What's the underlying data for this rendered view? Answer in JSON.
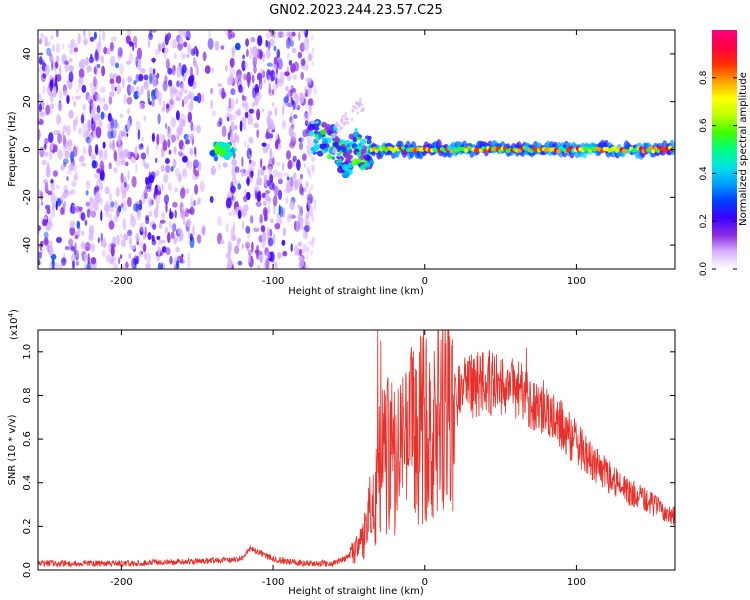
{
  "title": "GN02.2023.244.23.57.C25",
  "chart_data": [
    {
      "type": "heatmap",
      "xlabel": "Height of straight line (km)",
      "ylabel": "Frequency (Hz)",
      "xlim": [
        -255,
        165
      ],
      "ylim": [
        -50,
        50
      ],
      "xticks": [
        -200,
        -100,
        0,
        100
      ],
      "yticks": [
        -40,
        -20,
        0,
        20,
        40
      ],
      "xtick_labels": [
        "-200",
        "-100",
        "0",
        "100"
      ],
      "ytick_labels": [
        "-40",
        "-20",
        "0",
        "20",
        "40"
      ],
      "colorbar": {
        "label": "Normalized spectral amplitude",
        "range": [
          0,
          1
        ],
        "ticks": [
          0.0,
          0.2,
          0.4,
          0.6,
          0.8
        ],
        "tick_labels": [
          "0.0",
          "0.2",
          "0.4",
          "0.6",
          "0.8"
        ],
        "colors": [
          "#ffffff",
          "#d9b3ff",
          "#8a2be2",
          "#3b00ff",
          "#0040ff",
          "#00a0ff",
          "#00e5e5",
          "#00ff80",
          "#40ff00",
          "#c0ff00",
          "#ffff00",
          "#ffa000",
          "#ff3000",
          "#ff0040",
          "#ff0080"
        ]
      },
      "features": {
        "noise_region_x": [
          -255,
          -75
        ],
        "onset_x": -75,
        "line_frequency": 0,
        "line_start_x": -35,
        "transition_segment": [
          [
            -75,
            5
          ],
          [
            -60,
            3
          ],
          [
            -52,
            -5
          ],
          [
            -45,
            2
          ],
          [
            -40,
            -1
          ]
        ],
        "early_blob_x": [
          -140,
          -125
        ]
      }
    },
    {
      "type": "line",
      "xlabel": "Height of straight line (km)",
      "ylabel": "SNR (10 * v/v)",
      "scale_label": "(x10",
      "scale_exponent": "4",
      "scale_suffix": ")",
      "xlim": [
        -255,
        165
      ],
      "ylim": [
        0,
        1.1
      ],
      "xticks": [
        -200,
        -100,
        0,
        100
      ],
      "yticks": [
        0.0,
        0.2,
        0.4,
        0.6,
        0.8,
        1.0
      ],
      "xtick_labels": [
        "-200",
        "-100",
        "0",
        "100"
      ],
      "ytick_labels": [
        "0.0",
        "0.2",
        "0.4",
        "0.6",
        "0.8",
        "1.0"
      ],
      "line_color": "#e8302a",
      "envelope": {
        "x": [
          -255,
          -200,
          -150,
          -120,
          -115,
          -100,
          -80,
          -60,
          -50,
          -40,
          -35,
          -30,
          -25,
          -20,
          -15,
          -10,
          0,
          10,
          20,
          30,
          40,
          50,
          60,
          70,
          80,
          90,
          100,
          110,
          120,
          130,
          140,
          150,
          160,
          165
        ],
        "y": [
          0.03,
          0.03,
          0.04,
          0.05,
          0.1,
          0.05,
          0.03,
          0.03,
          0.06,
          0.15,
          0.3,
          0.45,
          0.55,
          0.5,
          0.52,
          0.6,
          0.7,
          0.76,
          0.8,
          0.84,
          0.86,
          0.84,
          0.82,
          0.78,
          0.74,
          0.66,
          0.58,
          0.5,
          0.44,
          0.38,
          0.34,
          0.3,
          0.26,
          0.25
        ]
      },
      "spikes": [
        {
          "x": -31,
          "y": 1.1
        },
        {
          "x": -30,
          "y": 0.75
        },
        {
          "x": -29,
          "y": 1.05
        },
        {
          "x": -27,
          "y": 0.72
        },
        {
          "x": 35,
          "y": 1.0
        },
        {
          "x": 67,
          "y": 1.02
        }
      ]
    }
  ]
}
